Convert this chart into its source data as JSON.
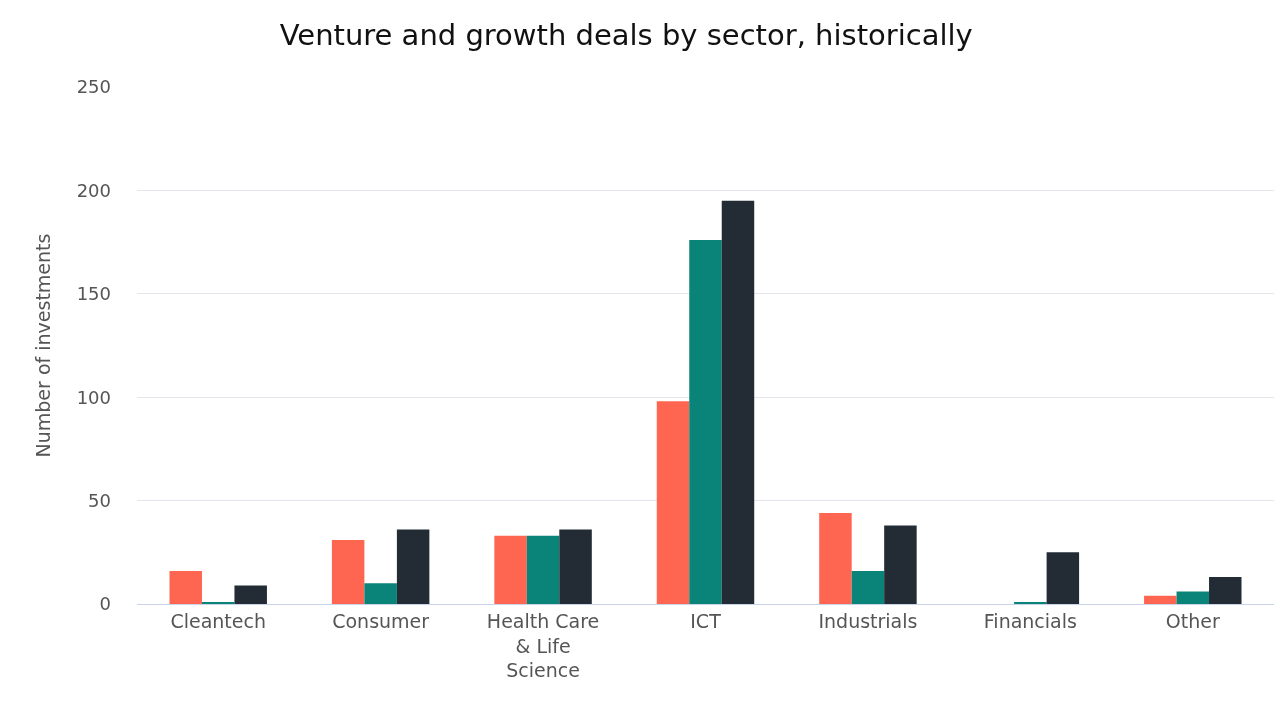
{
  "chart_data": {
    "type": "bar",
    "title": "Venture and growth deals by sector, historically",
    "ylabel": "Number of investments",
    "categories": [
      "Cleantech",
      "Consumer",
      "Health Care & Life Science",
      "ICT",
      "Industrials",
      "Financials",
      "Other"
    ],
    "series": [
      {
        "color": "#fe6652",
        "values": [
          16,
          31,
          33,
          98,
          44,
          0,
          4
        ]
      },
      {
        "color": "#0a8478",
        "values": [
          1,
          10,
          33,
          176,
          16,
          1,
          6
        ]
      },
      {
        "color": "#232c34",
        "values": [
          9,
          36,
          36,
          195,
          38,
          25,
          13
        ]
      }
    ],
    "ylim": [
      0,
      250
    ],
    "yticks": [
      0,
      50,
      100,
      150,
      200,
      250
    ],
    "grid": "y"
  }
}
